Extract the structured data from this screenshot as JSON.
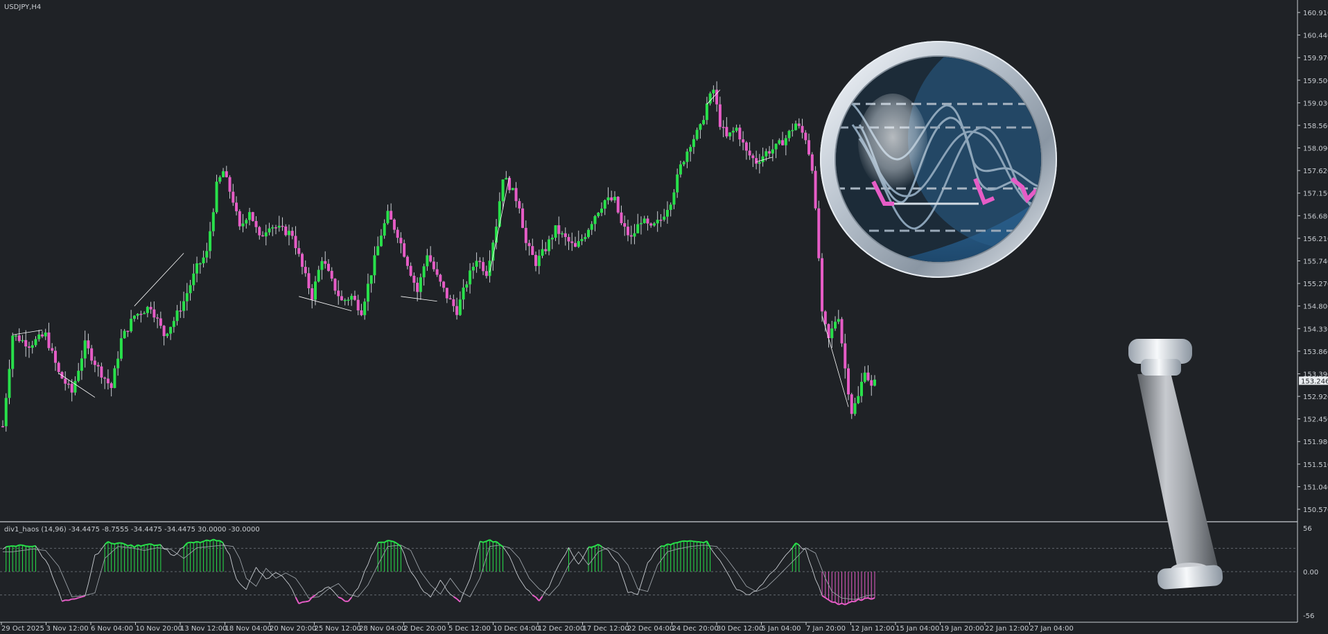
{
  "window": {
    "symbol_label": "USDJPY,H4"
  },
  "colors": {
    "background": "#1f2226",
    "bull": "#28e04a",
    "bear": "#e65cc6",
    "wick": "#c9cdd2",
    "grid_text": "#c9cdd2",
    "price_tag_bg": "#e9ecef",
    "price_tag_text": "#1f2226",
    "divergence_line": "#ffffff"
  },
  "main_chart": {
    "price_axis_labels": [
      "160.910",
      "160.440",
      "159.970",
      "159.500",
      "159.030",
      "158.560",
      "158.090",
      "157.620",
      "157.150",
      "156.680",
      "156.210",
      "155.740",
      "155.270",
      "154.800",
      "154.330",
      "153.860",
      "153.390",
      "152.920",
      "152.450",
      "151.980",
      "151.510",
      "151.040",
      "150.570"
    ],
    "current_price": "153.246",
    "ylim": [
      150.57,
      160.91
    ]
  },
  "indicator": {
    "label": "div1_haos (14,96) -34.4475 -8.7555 -34.4475 -34.4475 30.0000 -30.0000",
    "axis_labels": [
      "56",
      "0.00",
      "-56"
    ],
    "levels": [
      30,
      0,
      -30
    ]
  },
  "time_axis": {
    "labels": [
      "29 Oct 2025",
      "3 Nov 12:00",
      "6 Nov 04:00",
      "10 Nov 20:00",
      "13 Nov 12:00",
      "18 Nov 04:00",
      "20 Nov 20:00",
      "25 Nov 12:00",
      "28 Nov 04:00",
      "2 Dec 20:00",
      "5 Dec 12:00",
      "10 Dec 04:00",
      "12 Dec 20:00",
      "17 Dec 12:00",
      "22 Dec 04:00",
      "24 Dec 20:00",
      "30 Dec 12:00",
      "5 Jan 04:00",
      "7 Jan 20:00",
      "12 Jan 12:00",
      "15 Jan 04:00",
      "19 Jan 20:00",
      "22 Jan 12:00",
      "27 Jan 04:00"
    ]
  },
  "chart_data": {
    "type": "candlestick",
    "symbol": "USDJPY",
    "timeframe": "H4",
    "anchors": [
      [
        0,
        152.3
      ],
      [
        3,
        154.2
      ],
      [
        8,
        154.0
      ],
      [
        13,
        154.2
      ],
      [
        17,
        153.4
      ],
      [
        21,
        153.0
      ],
      [
        25,
        154.0
      ],
      [
        29,
        153.5
      ],
      [
        33,
        153.1
      ],
      [
        36,
        154.1
      ],
      [
        40,
        154.6
      ],
      [
        45,
        154.8
      ],
      [
        49,
        154.2
      ],
      [
        52,
        154.5
      ],
      [
        55,
        154.9
      ],
      [
        59,
        155.6
      ],
      [
        62,
        155.9
      ],
      [
        65,
        157.3
      ],
      [
        67,
        157.6
      ],
      [
        70,
        157.0
      ],
      [
        72,
        156.4
      ],
      [
        75,
        156.8
      ],
      [
        78,
        156.2
      ],
      [
        81,
        156.5
      ],
      [
        84,
        156.4
      ],
      [
        88,
        156.3
      ],
      [
        91,
        155.6
      ],
      [
        94,
        155.0
      ],
      [
        97,
        155.8
      ],
      [
        100,
        155.3
      ],
      [
        103,
        154.9
      ],
      [
        106,
        155.0
      ],
      [
        109,
        154.7
      ],
      [
        112,
        155.5
      ],
      [
        115,
        156.3
      ],
      [
        117,
        156.7
      ],
      [
        120,
        156.3
      ],
      [
        123,
        155.7
      ],
      [
        126,
        155.1
      ],
      [
        129,
        155.9
      ],
      [
        132,
        155.4
      ],
      [
        135,
        155.0
      ],
      [
        138,
        154.7
      ],
      [
        141,
        155.3
      ],
      [
        144,
        155.8
      ],
      [
        147,
        155.5
      ],
      [
        150,
        156.5
      ],
      [
        152,
        157.5
      ],
      [
        154,
        157.3
      ],
      [
        157,
        156.9
      ],
      [
        159,
        156.1
      ],
      [
        162,
        155.7
      ],
      [
        165,
        156.0
      ],
      [
        168,
        156.4
      ],
      [
        171,
        156.2
      ],
      [
        174,
        156.0
      ],
      [
        177,
        156.3
      ],
      [
        180,
        156.7
      ],
      [
        183,
        157.0
      ],
      [
        186,
        157.0
      ],
      [
        188,
        156.5
      ],
      [
        191,
        156.2
      ],
      [
        194,
        156.6
      ],
      [
        197,
        156.4
      ],
      [
        200,
        156.6
      ],
      [
        203,
        157.0
      ],
      [
        206,
        157.7
      ],
      [
        209,
        158.2
      ],
      [
        212,
        158.5
      ],
      [
        214,
        159.0
      ],
      [
        216,
        159.3
      ],
      [
        218,
        158.6
      ],
      [
        220,
        158.3
      ],
      [
        223,
        158.5
      ],
      [
        226,
        158.0
      ],
      [
        229,
        157.8
      ],
      [
        232,
        158.0
      ],
      [
        235,
        158.1
      ],
      [
        238,
        158.3
      ],
      [
        241,
        158.6
      ],
      [
        244,
        158.3
      ],
      [
        246,
        157.7
      ],
      [
        248,
        155.8
      ],
      [
        249,
        154.6
      ],
      [
        251,
        154.1
      ],
      [
        253,
        154.5
      ],
      [
        254,
        154.6
      ],
      [
        256,
        153.5
      ],
      [
        258,
        152.6
      ],
      [
        260,
        152.9
      ],
      [
        262,
        153.5
      ],
      [
        264,
        153.1
      ],
      [
        265,
        153.2
      ]
    ],
    "indicator_series": {
      "name": "div1_haos",
      "period": [
        14,
        96
      ],
      "values_shown": [
        -34.4475,
        -8.7555,
        -34.4475,
        -34.4475,
        30.0,
        -30.0
      ],
      "anchors": [
        [
          0,
          30
        ],
        [
          6,
          34
        ],
        [
          10,
          32
        ],
        [
          14,
          8
        ],
        [
          18,
          -38
        ],
        [
          22,
          -36
        ],
        [
          25,
          -32
        ],
        [
          28,
          20
        ],
        [
          32,
          38
        ],
        [
          36,
          36
        ],
        [
          40,
          32
        ],
        [
          44,
          36
        ],
        [
          48,
          34
        ],
        [
          52,
          20
        ],
        [
          56,
          36
        ],
        [
          60,
          38
        ],
        [
          64,
          40
        ],
        [
          67,
          38
        ],
        [
          69,
          20
        ],
        [
          71,
          -10
        ],
        [
          74,
          -22
        ],
        [
          77,
          5
        ],
        [
          80,
          -10
        ],
        [
          83,
          -2
        ],
        [
          86,
          -10
        ],
        [
          88,
          -24
        ],
        [
          90,
          -40
        ],
        [
          93,
          -38
        ],
        [
          96,
          -26
        ],
        [
          99,
          -18
        ],
        [
          102,
          -34
        ],
        [
          105,
          -38
        ],
        [
          108,
          -20
        ],
        [
          111,
          10
        ],
        [
          114,
          38
        ],
        [
          118,
          40
        ],
        [
          121,
          32
        ],
        [
          124,
          0
        ],
        [
          127,
          -20
        ],
        [
          130,
          -34
        ],
        [
          133,
          -10
        ],
        [
          136,
          -30
        ],
        [
          139,
          -38
        ],
        [
          142,
          -10
        ],
        [
          145,
          38
        ],
        [
          148,
          40
        ],
        [
          151,
          36
        ],
        [
          154,
          20
        ],
        [
          157,
          -10
        ],
        [
          160,
          -26
        ],
        [
          163,
          -36
        ],
        [
          166,
          -20
        ],
        [
          169,
          10
        ],
        [
          172,
          30
        ],
        [
          175,
          10
        ],
        [
          178,
          30
        ],
        [
          181,
          36
        ],
        [
          184,
          28
        ],
        [
          187,
          10
        ],
        [
          190,
          -26
        ],
        [
          193,
          -30
        ],
        [
          196,
          10
        ],
        [
          199,
          30
        ],
        [
          202,
          34
        ],
        [
          206,
          38
        ],
        [
          210,
          40
        ],
        [
          214,
          38
        ],
        [
          217,
          20
        ],
        [
          220,
          0
        ],
        [
          223,
          -22
        ],
        [
          226,
          -30
        ],
        [
          229,
          -24
        ],
        [
          232,
          -10
        ],
        [
          235,
          5
        ],
        [
          238,
          20
        ],
        [
          241,
          36
        ],
        [
          244,
          28
        ],
        [
          247,
          -10
        ],
        [
          249,
          -30
        ],
        [
          252,
          -40
        ],
        [
          256,
          -42
        ],
        [
          260,
          -36
        ],
        [
          264,
          -34
        ],
        [
          265,
          -34
        ]
      ]
    }
  },
  "overlay": {
    "icon": "magnifier-icon"
  }
}
